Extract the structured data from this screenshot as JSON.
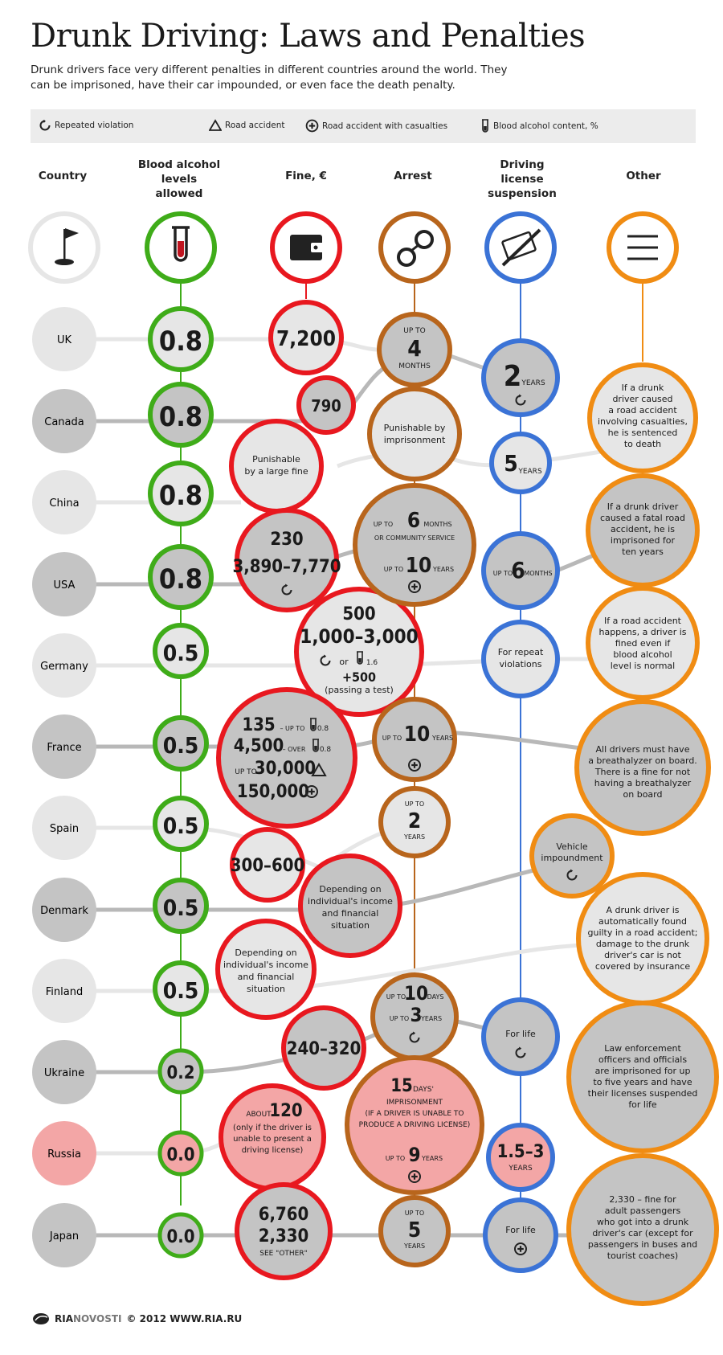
{
  "title": "Drunk Driving: Laws and Penalties",
  "subtitle": "Drunk drivers face very different penalties in different countries around the world. They can be imprisoned, have their car impounded, or even face the death penalty.",
  "legend": {
    "repeated": "Repeated violation",
    "accident": "Road accident",
    "casualties": "Road accident with casualties",
    "bac": "Blood alcohol content, %"
  },
  "columns": {
    "country": "Country",
    "blood_l1": "Blood alcohol",
    "blood_l2": "levels",
    "blood_l3": "allowed",
    "fine": "Fine, €",
    "arrest": "Arrest",
    "license_l1": "Driving",
    "license_l2": "license",
    "license_l3": "suspension",
    "other": "Other"
  },
  "countries": [
    "UK",
    "Canada",
    "China",
    "USA",
    "Germany",
    "France",
    "Spain",
    "Denmark",
    "Finland",
    "Ukraine",
    "Russia",
    "Japan"
  ],
  "blood": [
    "0.8",
    "0.8",
    "0.8",
    "0.8",
    "0.5",
    "0.5",
    "0.5",
    "0.5",
    "0.5",
    "0.2",
    "0.0",
    "0.0"
  ],
  "fine": {
    "uk": "7,200",
    "canada": "790",
    "china_1": "Punishable",
    "china_2": "by a large fine",
    "usa_1": "230",
    "usa_2": "3,890–7,770",
    "germany_1": "500",
    "germany_2": "1,000–3,000",
    "germany_or": "or",
    "germany_bac": "1.6",
    "germany_3": "+500",
    "germany_4": "(passing a test)",
    "france_1": "135",
    "france_1b": "– UP TO",
    "france_1c": "0.8",
    "france_2": "4,500",
    "france_2b": "– OVER",
    "france_2c": "0.8",
    "france_3a": "UP TO",
    "france_3": "30,000",
    "france_4": "150,000",
    "spain": "300–600",
    "finland_1": "Depending on",
    "finland_2": "individual's income",
    "finland_3": "and financial",
    "finland_4": "situation",
    "ukraine": "240–320",
    "russia_1a": "ABOUT",
    "russia_1": "120",
    "russia_2": "(only if the driver is",
    "russia_3": "unable to present a",
    "russia_4": "driving license)",
    "japan_1": "6,760",
    "japan_2": "2,330",
    "japan_3": "SEE \"OTHER\""
  },
  "arrest": {
    "uk_1": "UP TO",
    "uk_2": "4",
    "uk_3": "MONTHS",
    "canada_1": "Punishable by",
    "canada_2": "imprisonment",
    "usa_1a": "UP TO",
    "usa_1": "6",
    "usa_1b": "MONTHS",
    "usa_2": "OR COMMUNITY SERVICE",
    "usa_3a": "UP TO",
    "usa_3": "10",
    "usa_3b": "YEARS",
    "france_a": "UP TO",
    "france": "10",
    "france_b": "YEARS",
    "spain_1": "UP TO",
    "spain_2": "2",
    "spain_3": "YEARS",
    "denmark_1": "Depending on",
    "denmark_2": "individual's income",
    "denmark_3": "and financial",
    "denmark_4": "situation",
    "ukraine_1a": "UP TO",
    "ukraine_1": "10",
    "ukraine_1b": "DAYS",
    "ukraine_2a": "UP TO",
    "ukraine_2": "3",
    "ukraine_2b": "YEARS",
    "russia_1": "15",
    "russia_1b": "DAYS'",
    "russia_2": "IMPRISONMENT",
    "russia_3": "(IF A DRIVER IS UNABLE TO",
    "russia_4": "PRODUCE A DRIVING LICENSE)",
    "russia_5a": "UP TO",
    "russia_5": "9",
    "russia_5b": "YEARS",
    "japan_1": "UP TO",
    "japan_2": "5",
    "japan_3": "YEARS"
  },
  "license": {
    "uk": "2",
    "uk_b": "YEARS",
    "china": "5",
    "china_b": "YEARS",
    "usa_a": "UP TO",
    "usa": "6",
    "usa_b": "MONTHS",
    "germany_1": "For repeat",
    "germany_2": "violations",
    "ukraine": "For life",
    "russia_1": "1.5–3",
    "russia_2": "YEARS",
    "japan": "For life"
  },
  "other": {
    "canada": [
      "If a drunk",
      "driver caused",
      "a road accident",
      "involving casualties,",
      "he is sentenced",
      "to death"
    ],
    "usa": [
      "If a drunk driver",
      "caused a fatal road",
      "accident, he is",
      "imprisoned for",
      "ten years"
    ],
    "germany": [
      "If a road accident",
      "happens, a driver is",
      "fined even if",
      "blood alcohol",
      "level is normal"
    ],
    "france": [
      "All drivers must have",
      "a breathalyzer on board.",
      "There is a fine for not",
      "having a breathalyzer",
      "on board"
    ],
    "spain": [
      "Vehicle",
      "impoundment"
    ],
    "finland": [
      "A drunk driver is",
      "automatically found",
      "guilty in a road accident;",
      "damage to the drunk",
      "driver's car is not",
      "covered by insurance"
    ],
    "ukraine": [
      "Law enforcement",
      "officers and officials",
      "are imprisoned for up",
      "to five years and have",
      "their licenses suspended",
      "for life"
    ],
    "japan": [
      "2,330 – fine for",
      "adult passengers",
      "who got into a drunk",
      "driver's car (except for",
      "passengers in buses and",
      "tourist coaches)"
    ]
  },
  "footer": {
    "brand_a": "RIA",
    "brand_b": "NOVOSTI",
    "copy": "© 2012 WWW.RIA.RU"
  },
  "colors": {
    "green": "#3fac19",
    "red": "#e8181f",
    "brown": "#b8651c",
    "blue": "#3b73d6",
    "orange": "#f08c13",
    "gray_light": "#e6e6e6",
    "gray_dark": "#c4c4c4",
    "russia_pink": "#f3a6a6"
  }
}
